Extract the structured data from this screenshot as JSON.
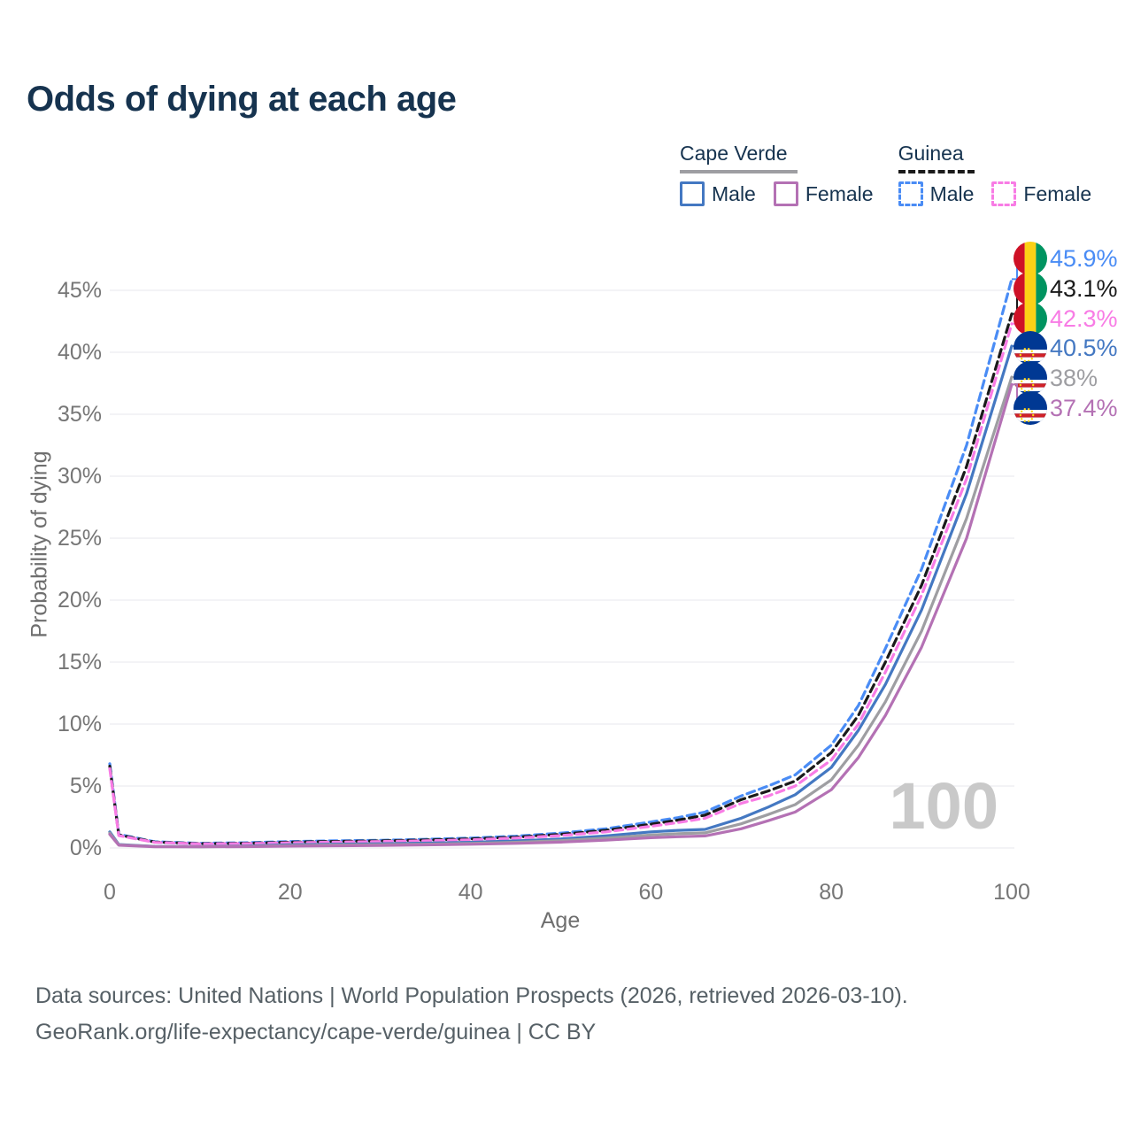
{
  "title": "Odds of dying at each age",
  "watermark_age": "100",
  "legend": {
    "groups": [
      {
        "country": "Cape Verde",
        "series_key": "cv_both",
        "items": [
          {
            "label": "Male",
            "series_key": "cv_male"
          },
          {
            "label": "Female",
            "series_key": "cv_female"
          }
        ]
      },
      {
        "country": "Guinea",
        "series_key": "gn_both",
        "items": [
          {
            "label": "Male",
            "series_key": "gn_male"
          },
          {
            "label": "Female",
            "series_key": "gn_female"
          }
        ]
      }
    ]
  },
  "chart_data": {
    "type": "line",
    "title": "Odds of dying at each age",
    "xlabel": "Age",
    "ylabel": "Probability of dying",
    "xlim": [
      0,
      100
    ],
    "ylim_pct": [
      0,
      47
    ],
    "grid": "horizontal",
    "legend_position": "top-right",
    "x_ticks": [
      {
        "v": 0,
        "label": "0"
      },
      {
        "v": 20,
        "label": "20"
      },
      {
        "v": 40,
        "label": "40"
      },
      {
        "v": 60,
        "label": "60"
      },
      {
        "v": 80,
        "label": "80"
      },
      {
        "v": 100,
        "label": "100"
      }
    ],
    "y_ticks": [
      {
        "v": 0,
        "label": "0%"
      },
      {
        "v": 5,
        "label": "5%"
      },
      {
        "v": 10,
        "label": "10%"
      },
      {
        "v": 15,
        "label": "15%"
      },
      {
        "v": 20,
        "label": "20%"
      },
      {
        "v": 25,
        "label": "25%"
      },
      {
        "v": 30,
        "label": "30%"
      },
      {
        "v": 35,
        "label": "35%"
      },
      {
        "v": 40,
        "label": "40%"
      },
      {
        "v": 45,
        "label": "45%"
      }
    ],
    "series": [
      {
        "key": "gn_male",
        "name": "Guinea Male",
        "country": "Guinea",
        "sex": "Male",
        "color": "#4A8CF5",
        "dashed": true,
        "flag": "guinea",
        "end_label": "45.9%",
        "end_value_pct": 45.9,
        "points": [
          [
            0,
            6.8
          ],
          [
            1,
            1.1
          ],
          [
            5,
            0.5
          ],
          [
            10,
            0.38
          ],
          [
            15,
            0.42
          ],
          [
            20,
            0.52
          ],
          [
            25,
            0.58
          ],
          [
            30,
            0.62
          ],
          [
            35,
            0.7
          ],
          [
            40,
            0.8
          ],
          [
            45,
            0.95
          ],
          [
            50,
            1.2
          ],
          [
            55,
            1.55
          ],
          [
            60,
            2.1
          ],
          [
            63,
            2.45
          ],
          [
            66,
            2.9
          ],
          [
            70,
            4.2
          ],
          [
            73,
            5.0
          ],
          [
            76,
            5.9
          ],
          [
            80,
            8.3
          ],
          [
            83,
            11.5
          ],
          [
            86,
            16.1
          ],
          [
            90,
            22.5
          ],
          [
            95,
            32.5
          ],
          [
            100,
            45.9
          ]
        ]
      },
      {
        "key": "gn_both",
        "name": "Guinea",
        "country": "Guinea",
        "sex": "Both",
        "color": "#1A1A1A",
        "dashed": true,
        "flag": "guinea",
        "end_label": "43.1%",
        "end_value_pct": 43.1,
        "points": [
          [
            0,
            6.6
          ],
          [
            1,
            1.05
          ],
          [
            5,
            0.48
          ],
          [
            10,
            0.35
          ],
          [
            15,
            0.38
          ],
          [
            20,
            0.47
          ],
          [
            25,
            0.53
          ],
          [
            30,
            0.57
          ],
          [
            35,
            0.64
          ],
          [
            40,
            0.73
          ],
          [
            45,
            0.87
          ],
          [
            50,
            1.1
          ],
          [
            55,
            1.42
          ],
          [
            60,
            1.92
          ],
          [
            63,
            2.25
          ],
          [
            66,
            2.65
          ],
          [
            70,
            3.9
          ],
          [
            73,
            4.6
          ],
          [
            76,
            5.4
          ],
          [
            80,
            7.7
          ],
          [
            83,
            10.7
          ],
          [
            86,
            15.0
          ],
          [
            90,
            21.2
          ],
          [
            95,
            30.8
          ],
          [
            100,
            43.1
          ]
        ]
      },
      {
        "key": "gn_female",
        "name": "Guinea Female",
        "country": "Guinea",
        "sex": "Female",
        "color": "#F87CE5",
        "dashed": true,
        "flag": "guinea",
        "end_label": "42.3%",
        "end_value_pct": 42.3,
        "points": [
          [
            0,
            6.4
          ],
          [
            1,
            1.0
          ],
          [
            5,
            0.45
          ],
          [
            10,
            0.33
          ],
          [
            15,
            0.35
          ],
          [
            20,
            0.42
          ],
          [
            25,
            0.47
          ],
          [
            30,
            0.52
          ],
          [
            35,
            0.58
          ],
          [
            40,
            0.66
          ],
          [
            45,
            0.8
          ],
          [
            50,
            1.0
          ],
          [
            55,
            1.3
          ],
          [
            60,
            1.75
          ],
          [
            63,
            2.05
          ],
          [
            66,
            2.4
          ],
          [
            70,
            3.6
          ],
          [
            73,
            4.2
          ],
          [
            76,
            5.0
          ],
          [
            80,
            7.1
          ],
          [
            83,
            10.0
          ],
          [
            86,
            14.2
          ],
          [
            90,
            20.4
          ],
          [
            95,
            29.8
          ],
          [
            100,
            42.3
          ]
        ]
      },
      {
        "key": "cv_male",
        "name": "Cape Verde Male",
        "country": "Cape Verde",
        "sex": "Male",
        "color": "#4478C2",
        "dashed": false,
        "flag": "cape-verde",
        "end_label": "40.5%",
        "end_value_pct": 40.5,
        "points": [
          [
            0,
            1.3
          ],
          [
            1,
            0.28
          ],
          [
            5,
            0.13
          ],
          [
            10,
            0.11
          ],
          [
            15,
            0.16
          ],
          [
            20,
            0.26
          ],
          [
            25,
            0.31
          ],
          [
            30,
            0.34
          ],
          [
            35,
            0.39
          ],
          [
            40,
            0.46
          ],
          [
            45,
            0.57
          ],
          [
            50,
            0.73
          ],
          [
            55,
            0.98
          ],
          [
            60,
            1.3
          ],
          [
            63,
            1.42
          ],
          [
            66,
            1.5
          ],
          [
            70,
            2.4
          ],
          [
            73,
            3.3
          ],
          [
            76,
            4.3
          ],
          [
            80,
            6.5
          ],
          [
            83,
            9.5
          ],
          [
            86,
            13.2
          ],
          [
            90,
            19.2
          ],
          [
            95,
            28.6
          ],
          [
            100,
            40.5
          ]
        ]
      },
      {
        "key": "cv_both",
        "name": "Cape Verde",
        "country": "Cape Verde",
        "sex": "Both",
        "color": "#9E9EA2",
        "dashed": false,
        "flag": "cape-verde",
        "end_label": "38%",
        "end_value_pct": 38.0,
        "points": [
          [
            0,
            1.2
          ],
          [
            1,
            0.25
          ],
          [
            5,
            0.12
          ],
          [
            10,
            0.1
          ],
          [
            15,
            0.13
          ],
          [
            20,
            0.2
          ],
          [
            25,
            0.24
          ],
          [
            30,
            0.27
          ],
          [
            35,
            0.31
          ],
          [
            40,
            0.37
          ],
          [
            45,
            0.46
          ],
          [
            50,
            0.59
          ],
          [
            55,
            0.8
          ],
          [
            60,
            1.05
          ],
          [
            63,
            1.15
          ],
          [
            66,
            1.22
          ],
          [
            70,
            1.95
          ],
          [
            73,
            2.7
          ],
          [
            76,
            3.5
          ],
          [
            80,
            5.5
          ],
          [
            83,
            8.3
          ],
          [
            86,
            11.8
          ],
          [
            90,
            17.5
          ],
          [
            95,
            26.6
          ],
          [
            100,
            38.0
          ]
        ]
      },
      {
        "key": "cv_female",
        "name": "Cape Verde Female",
        "country": "Cape Verde",
        "sex": "Female",
        "color": "#B471B4",
        "dashed": false,
        "flag": "cape-verde",
        "end_label": "37.4%",
        "end_value_pct": 37.4,
        "points": [
          [
            0,
            1.1
          ],
          [
            1,
            0.22
          ],
          [
            5,
            0.1
          ],
          [
            10,
            0.09
          ],
          [
            15,
            0.11
          ],
          [
            20,
            0.15
          ],
          [
            25,
            0.18
          ],
          [
            30,
            0.21
          ],
          [
            35,
            0.25
          ],
          [
            40,
            0.3
          ],
          [
            45,
            0.37
          ],
          [
            50,
            0.47
          ],
          [
            55,
            0.63
          ],
          [
            60,
            0.83
          ],
          [
            63,
            0.91
          ],
          [
            66,
            0.97
          ],
          [
            70,
            1.55
          ],
          [
            73,
            2.2
          ],
          [
            76,
            2.9
          ],
          [
            80,
            4.7
          ],
          [
            83,
            7.3
          ],
          [
            86,
            10.7
          ],
          [
            90,
            16.2
          ],
          [
            95,
            25.0
          ],
          [
            100,
            37.4
          ]
        ]
      }
    ],
    "flag_colors": {
      "guinea": {
        "red": "#CE1126",
        "yellow": "#FCD116",
        "green": "#009460"
      },
      "cape_verde": {
        "blue": "#003893",
        "red": "#CF2027",
        "white": "#FFFFFF",
        "star": "#F7D116"
      }
    }
  },
  "footer": {
    "line1": "Data sources: United Nations | World Population Prospects (2026, retrieved 2026-03-10).",
    "line2": "GeoRank.org/life-expectancy/cape-verde/guinea | CC BY"
  }
}
